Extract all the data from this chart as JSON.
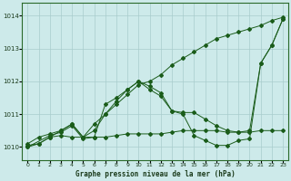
{
  "title": "Graphe pression niveau de la mer (hPa)",
  "background_color": "#cdeaea",
  "grid_color": "#a8cccc",
  "line_color": "#1a5c1a",
  "xlim": [
    -0.5,
    23.5
  ],
  "ylim": [
    1009.6,
    1014.4
  ],
  "xticks": [
    0,
    1,
    2,
    3,
    4,
    5,
    6,
    7,
    8,
    9,
    10,
    11,
    12,
    13,
    14,
    15,
    16,
    17,
    18,
    19,
    20,
    21,
    22,
    23
  ],
  "yticks": [
    1010,
    1011,
    1012,
    1013,
    1014
  ],
  "series": [
    {
      "x": [
        0,
        1,
        2,
        3,
        4,
        5,
        6,
        7,
        8,
        9,
        10,
        11,
        12,
        13,
        14,
        15,
        16,
        17,
        18,
        19,
        20,
        21,
        22,
        23
      ],
      "y": [
        1010.05,
        1010.1,
        1010.3,
        1010.35,
        1010.3,
        1010.3,
        1010.3,
        1010.3,
        1010.35,
        1010.4,
        1010.4,
        1010.4,
        1010.4,
        1010.45,
        1010.5,
        1010.5,
        1010.5,
        1010.5,
        1010.45,
        1010.45,
        1010.45,
        1010.5,
        1010.5,
        1010.5
      ]
    },
    {
      "x": [
        0,
        1,
        2,
        3,
        4,
        5,
        6,
        7,
        8,
        9,
        10,
        11,
        12,
        13,
        14,
        15,
        16,
        17,
        18,
        19,
        20,
        21,
        22,
        23
      ],
      "y": [
        1010.1,
        1010.3,
        1010.4,
        1010.5,
        1010.7,
        1010.3,
        1010.5,
        1011.0,
        1011.4,
        1011.75,
        1012.0,
        1011.85,
        1011.65,
        1011.1,
        1011.05,
        1011.05,
        1010.85,
        1010.65,
        1010.5,
        1010.45,
        1010.5,
        1012.55,
        1013.1,
        1013.9
      ]
    },
    {
      "x": [
        0,
        1,
        2,
        3,
        4,
        5,
        6,
        7,
        8,
        9,
        10,
        11,
        12,
        13,
        14,
        15,
        16,
        17,
        18,
        19,
        20,
        21,
        22,
        23
      ],
      "y": [
        1010.0,
        1010.1,
        1010.3,
        1010.5,
        1010.7,
        1010.3,
        1010.7,
        1011.0,
        1011.3,
        1011.6,
        1011.9,
        1012.0,
        1012.2,
        1012.5,
        1012.7,
        1012.9,
        1013.1,
        1013.3,
        1013.4,
        1013.5,
        1013.6,
        1013.7,
        1013.85,
        1013.95
      ]
    },
    {
      "x": [
        0,
        2,
        3,
        4,
        5,
        6,
        7,
        8,
        9,
        10,
        11,
        12,
        13,
        14,
        15,
        16,
        17,
        18,
        19,
        20,
        21,
        22,
        23
      ],
      "y": [
        1010.0,
        1010.35,
        1010.45,
        1010.65,
        1010.25,
        1010.3,
        1011.3,
        1011.5,
        1011.75,
        1012.0,
        1011.75,
        1011.55,
        1011.1,
        1011.0,
        1010.35,
        1010.2,
        1010.05,
        1010.05,
        1010.2,
        1010.25,
        1012.55,
        1013.1,
        1013.9
      ]
    }
  ]
}
